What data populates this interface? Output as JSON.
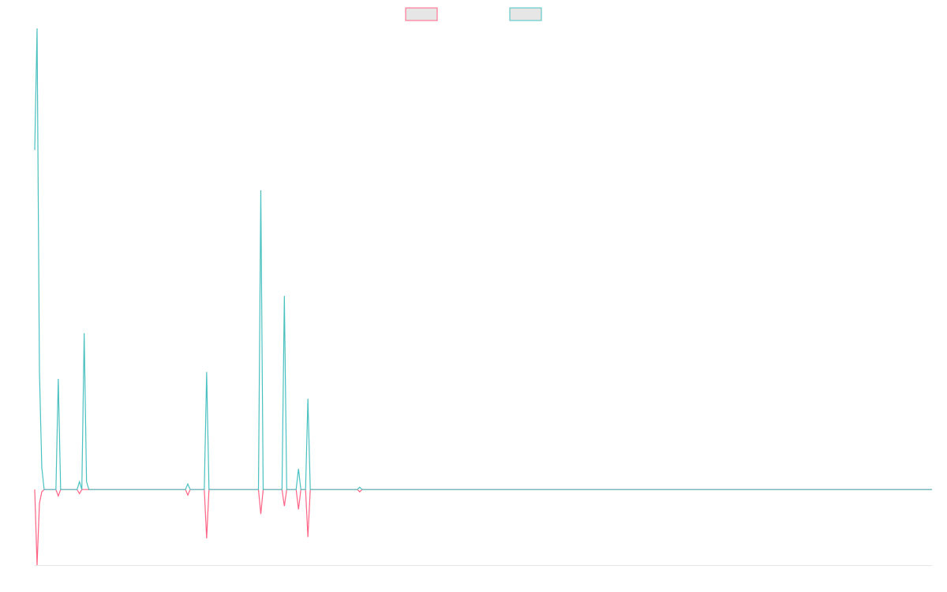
{
  "chart_data": {
    "type": "line",
    "ylim": [
      -16.4,
      100
    ],
    "series": [
      {
        "color": "#ff6384",
        "values": [
          0,
          -16.4,
          -3,
          -0.5,
          0,
          0,
          0,
          0,
          0,
          0,
          -1.4,
          0,
          0,
          0,
          0,
          0,
          0,
          0,
          0,
          -0.9,
          0,
          0,
          0,
          0,
          0,
          0,
          0,
          0,
          0,
          0,
          0,
          0,
          0,
          0,
          0,
          0,
          0,
          0,
          0,
          0,
          0,
          0,
          0,
          0,
          0,
          0,
          0,
          0,
          0,
          0,
          0,
          0,
          0,
          0,
          0,
          0,
          0,
          0,
          0,
          0,
          0,
          0,
          0,
          0,
          0,
          -1.2,
          0,
          0,
          0,
          0,
          0,
          0,
          0,
          -10.6,
          0,
          0,
          0,
          0,
          0,
          0,
          0,
          0,
          0,
          0,
          0,
          0,
          0,
          0,
          0,
          0,
          0,
          0,
          0,
          0,
          0,
          0,
          -5.3,
          0,
          0,
          0,
          0,
          0,
          0,
          0,
          0,
          0,
          -3.6,
          0,
          0,
          0,
          0,
          0,
          -4.3,
          0,
          0,
          0,
          -10.3,
          0,
          0,
          0,
          0,
          0,
          0,
          0,
          0,
          0,
          0,
          0,
          0,
          0,
          0,
          0,
          0,
          0,
          0,
          0,
          0,
          0,
          -0.5,
          0,
          0,
          0,
          0,
          0,
          0,
          0,
          0,
          0,
          0,
          0,
          0,
          0,
          0,
          0,
          0,
          0,
          0,
          0,
          0,
          0,
          0,
          0,
          0,
          0,
          0,
          0,
          0,
          0,
          0,
          0,
          0,
          0,
          0,
          0,
          0,
          0,
          0,
          0,
          0,
          0,
          0,
          0,
          0,
          0,
          0,
          0,
          0,
          0,
          0,
          0,
          0,
          0,
          0,
          0,
          0,
          0,
          0,
          0,
          0,
          0,
          0,
          0,
          0,
          0,
          0,
          0,
          0,
          0,
          0,
          0,
          0,
          0,
          0,
          0,
          0,
          0,
          0,
          0,
          0,
          0,
          0,
          0,
          0,
          0,
          0,
          0,
          0,
          0,
          0,
          0,
          0,
          0,
          0,
          0,
          0,
          0,
          0,
          0,
          0,
          0,
          0,
          0,
          0,
          0,
          0,
          0,
          0,
          0,
          0,
          0,
          0,
          0,
          0,
          0,
          0,
          0,
          0,
          0,
          0,
          0,
          0,
          0,
          0,
          0,
          0,
          0,
          0,
          0,
          0,
          0,
          0,
          0,
          0,
          0,
          0,
          0,
          0,
          0,
          0,
          0,
          0,
          0,
          0,
          0,
          0,
          0,
          0,
          0,
          0,
          0,
          0,
          0,
          0,
          0,
          0,
          0,
          0,
          0,
          0,
          0,
          0,
          0,
          0,
          0,
          0,
          0,
          0,
          0,
          0,
          0,
          0,
          0,
          0,
          0,
          0,
          0,
          0,
          0,
          0,
          0,
          0,
          0,
          0,
          0,
          0,
          0,
          0,
          0,
          0,
          0,
          0,
          0,
          0,
          0,
          0,
          0,
          0,
          0,
          0,
          0,
          0,
          0,
          0,
          0,
          0,
          0,
          0,
          0,
          0,
          0,
          0,
          0,
          0,
          0,
          0,
          0,
          0,
          0,
          0,
          0,
          0,
          0,
          0,
          0,
          0,
          0,
          0,
          0,
          0,
          0,
          0,
          0,
          0,
          0,
          0,
          0,
          0,
          0,
          0,
          0,
          0,
          0
        ]
      },
      {
        "color": "#4bc0c0",
        "values": [
          73.6,
          100,
          25.7,
          4.8,
          0,
          0,
          0,
          0,
          0,
          0,
          24,
          0,
          0,
          0,
          0,
          0,
          0,
          0,
          0,
          1.7,
          0,
          33.9,
          1.7,
          0,
          0,
          0,
          0,
          0,
          0,
          0,
          0,
          0,
          0,
          0,
          0,
          0,
          0,
          0,
          0,
          0,
          0,
          0,
          0,
          0,
          0,
          0,
          0,
          0,
          0,
          0,
          0,
          0,
          0,
          0,
          0,
          0,
          0,
          0,
          0,
          0,
          0,
          0,
          0,
          0,
          0,
          1.2,
          0,
          0,
          0,
          0,
          0,
          0,
          0,
          25.5,
          0,
          0,
          0,
          0,
          0,
          0,
          0,
          0,
          0,
          0,
          0,
          0,
          0,
          0,
          0,
          0,
          0,
          0,
          0,
          0,
          0,
          0,
          64.9,
          0,
          0,
          0,
          0,
          0,
          0,
          0,
          0,
          0,
          42,
          0,
          0,
          0,
          0,
          0,
          4.5,
          0,
          0,
          0,
          19.7,
          0,
          0,
          0,
          0,
          0,
          0,
          0,
          0,
          0,
          0,
          0,
          0,
          0,
          0,
          0,
          0,
          0,
          0,
          0,
          0,
          0,
          0.5,
          0,
          0,
          0,
          0,
          0,
          0,
          0,
          0,
          0,
          0,
          0,
          0,
          0,
          0,
          0,
          0,
          0,
          0,
          0,
          0,
          0,
          0,
          0,
          0,
          0,
          0,
          0,
          0,
          0,
          0,
          0,
          0,
          0,
          0,
          0,
          0,
          0,
          0,
          0,
          0,
          0,
          0,
          0,
          0,
          0,
          0,
          0,
          0,
          0,
          0,
          0,
          0,
          0,
          0,
          0,
          0,
          0,
          0,
          0,
          0,
          0,
          0,
          0,
          0,
          0,
          0,
          0,
          0,
          0,
          0,
          0,
          0,
          0,
          0,
          0,
          0,
          0,
          0,
          0,
          0,
          0,
          0,
          0,
          0,
          0,
          0,
          0,
          0,
          0,
          0,
          0,
          0,
          0,
          0,
          0,
          0,
          0,
          0,
          0,
          0,
          0,
          0,
          0,
          0,
          0,
          0,
          0,
          0,
          0,
          0,
          0,
          0,
          0,
          0,
          0,
          0,
          0,
          0,
          0,
          0,
          0,
          0,
          0,
          0,
          0,
          0,
          0,
          0,
          0,
          0,
          0,
          0,
          0,
          0,
          0,
          0,
          0,
          0,
          0,
          0,
          0,
          0,
          0,
          0,
          0,
          0,
          0,
          0,
          0,
          0,
          0,
          0,
          0,
          0,
          0,
          0,
          0,
          0,
          0,
          0,
          0,
          0,
          0,
          0,
          0,
          0,
          0,
          0,
          0,
          0,
          0,
          0,
          0,
          0,
          0,
          0,
          0,
          0,
          0,
          0,
          0,
          0,
          0,
          0,
          0,
          0,
          0,
          0,
          0,
          0,
          0,
          0,
          0,
          0,
          0,
          0,
          0,
          0,
          0,
          0,
          0,
          0,
          0,
          0,
          0,
          0,
          0,
          0,
          0,
          0,
          0,
          0,
          0,
          0,
          0,
          0,
          0,
          0,
          0,
          0,
          0,
          0,
          0,
          0,
          0,
          0,
          0,
          0,
          0,
          0,
          0,
          0,
          0,
          0,
          0,
          0,
          0,
          0,
          0,
          0,
          0,
          0,
          0
        ]
      }
    ]
  }
}
